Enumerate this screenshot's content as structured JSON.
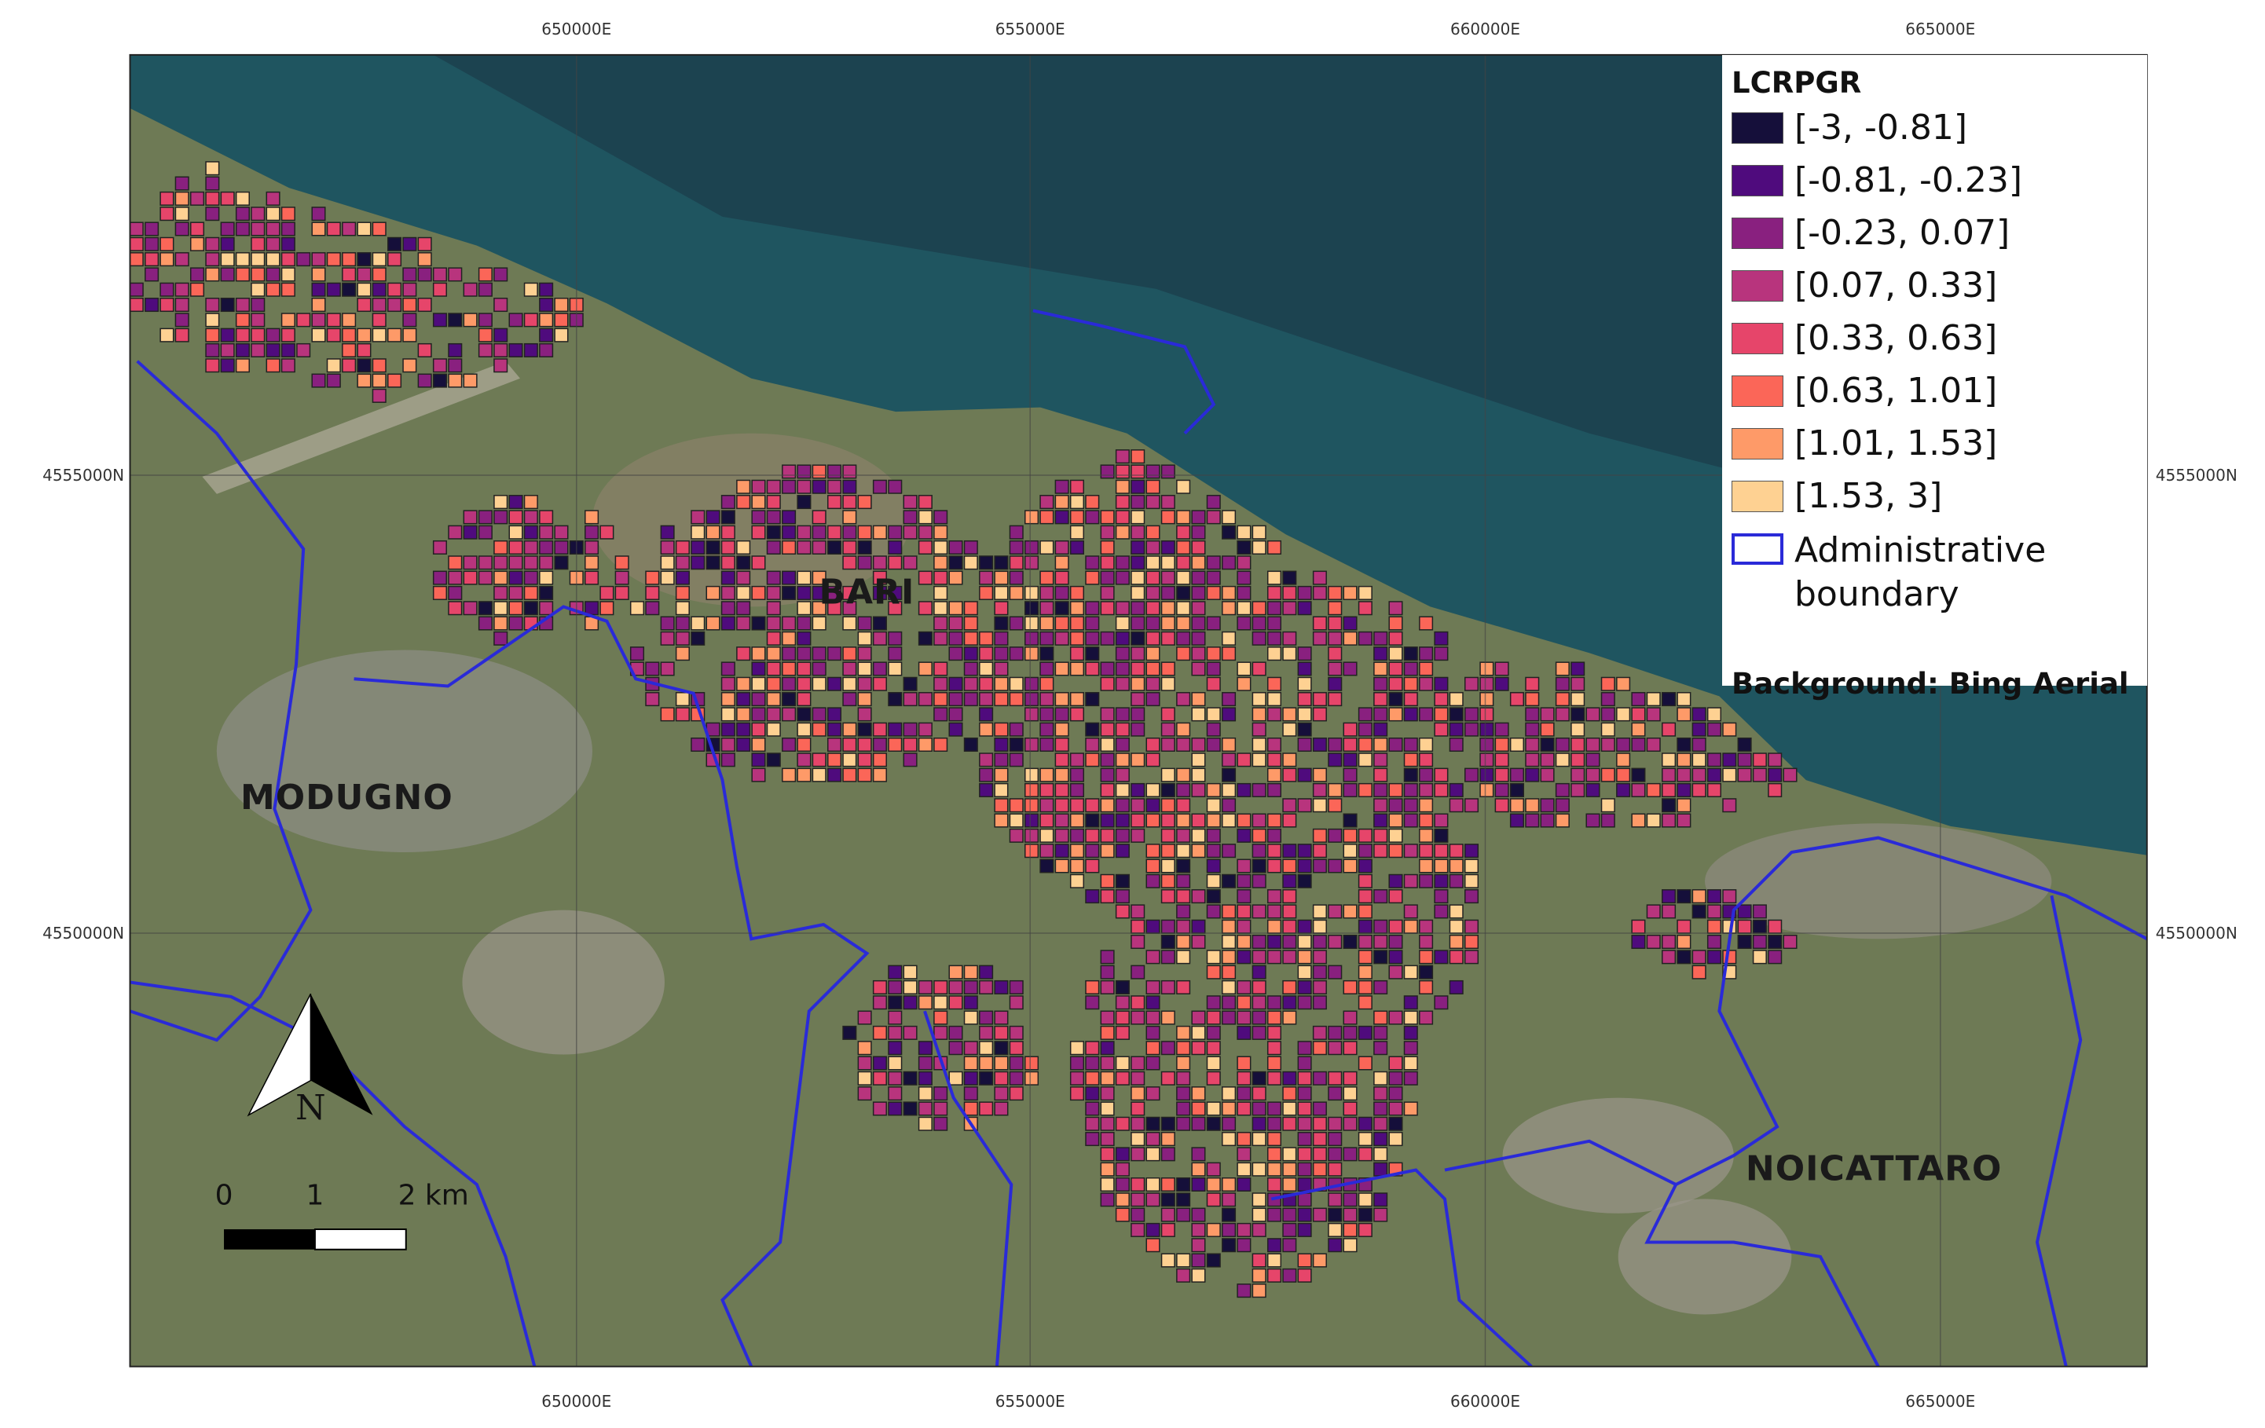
{
  "map": {
    "grid_labels": {
      "x": [
        "650000E",
        "655000E",
        "660000E",
        "665000E"
      ],
      "y": [
        "4555000N",
        "4550000N"
      ]
    },
    "legend": {
      "title": "LCRPGR",
      "items": [
        {
          "label": "[-3, -0.81]",
          "color": "#150f3a"
        },
        {
          "label": "[-0.81, -0.23]",
          "color": "#4f0b7d"
        },
        {
          "label": "[-0.23, 0.07]",
          "color": "#89207f"
        },
        {
          "label": "[0.07, 0.33]",
          "color": "#b8347d"
        },
        {
          "label": "[0.33, 0.63]",
          "color": "#e6456a"
        },
        {
          "label": "[0.63, 1.01]",
          "color": "#fb6658"
        },
        {
          "label": "[1.01, 1.53]",
          "color": "#fe9a68"
        },
        {
          "label": "[1.53, 3]",
          "color": "#fed192"
        }
      ],
      "boundary": {
        "label": "Administrative boundary",
        "color": "#2a2ad8"
      },
      "background": "Background: Bing Aerial"
    },
    "places": [
      "BARI",
      "MODUGNO",
      "NOICATTARO"
    ],
    "north": "N",
    "scale": [
      "0",
      "1",
      "2 km"
    ]
  }
}
